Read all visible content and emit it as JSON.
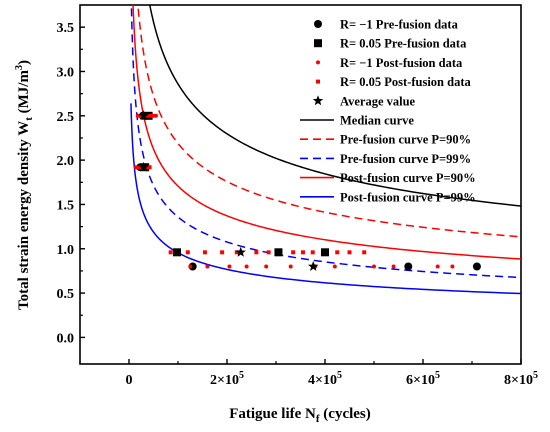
{
  "chart_data": {
    "type": "scatter",
    "xlabel_main": "Fatigue life N",
    "xlabel_sub": "f",
    "xlabel_tail": " (cycles)",
    "ylabel_main": "Total strain energy density  W",
    "ylabel_sub": "t",
    "ylabel_tail": " (MJ/m",
    "ylabel_sup": "3",
    "ylabel_close": ")",
    "xlim": [
      -100000,
      800000
    ],
    "ylim": [
      -0.3,
      3.75
    ],
    "x_ticks": [
      {
        "v": 0,
        "label": "0"
      },
      {
        "v": 200000,
        "label": "2×10",
        "sup": "5"
      },
      {
        "v": 400000,
        "label": "4×10",
        "sup": "5"
      },
      {
        "v": 600000,
        "label": "6×10",
        "sup": "5"
      },
      {
        "v": 800000,
        "label": "8×10",
        "sup": "5"
      }
    ],
    "y_ticks": [
      {
        "v": 0.0,
        "label": "0.0"
      },
      {
        "v": 0.5,
        "label": "0.5"
      },
      {
        "v": 1.0,
        "label": "1.0"
      },
      {
        "v": 1.5,
        "label": "1.5"
      },
      {
        "v": 2.0,
        "label": "2.0"
      },
      {
        "v": 2.5,
        "label": "2.5"
      },
      {
        "v": 3.0,
        "label": "3.0"
      },
      {
        "v": 3.5,
        "label": "3.5"
      }
    ],
    "legend_placement": "top-right",
    "series": [
      {
        "name": "R= −1    Pre-fusion data",
        "kind": "points",
        "marker": "circle",
        "size": 8,
        "color": "#000000",
        "points": [
          [
            28000,
            2.5
          ],
          [
            23000,
            1.92
          ],
          [
            130000,
            0.8
          ],
          [
            570000,
            0.8
          ],
          [
            710000,
            0.8
          ]
        ]
      },
      {
        "name": "R= 0.05  Pre-fusion data",
        "kind": "points",
        "marker": "square",
        "size": 8,
        "color": "#000000",
        "points": [
          [
            40000,
            2.5
          ],
          [
            33000,
            1.92
          ],
          [
            98000,
            0.96
          ],
          [
            305000,
            0.96
          ],
          [
            400000,
            0.96
          ]
        ]
      },
      {
        "name": "R= −1    Post-fusion data",
        "kind": "points",
        "marker": "circle",
        "size": 4,
        "color": "#ff0000",
        "points": [
          [
            18000,
            2.5
          ],
          [
            42000,
            2.5
          ],
          [
            55000,
            2.5
          ],
          [
            20000,
            1.92
          ],
          [
            30000,
            1.92
          ],
          [
            38000,
            1.92
          ],
          [
            14000,
            1.92
          ],
          [
            125000,
            0.8
          ],
          [
            160000,
            0.8
          ],
          [
            205000,
            0.8
          ],
          [
            240000,
            0.8
          ],
          [
            280000,
            0.8
          ],
          [
            330000,
            0.8
          ],
          [
            380000,
            0.8
          ],
          [
            420000,
            0.8
          ],
          [
            500000,
            0.8
          ],
          [
            540000,
            0.8
          ],
          [
            630000,
            0.8
          ],
          [
            660000,
            0.8
          ]
        ]
      },
      {
        "name": "R= 0.05  Post-fusion data",
        "kind": "points",
        "marker": "square",
        "size": 4,
        "color": "#ff0000",
        "points": [
          [
            25000,
            2.5
          ],
          [
            35000,
            2.5
          ],
          [
            48000,
            2.5
          ],
          [
            25000,
            1.92
          ],
          [
            42000,
            1.92
          ],
          [
            85000,
            0.96
          ],
          [
            120000,
            0.96
          ],
          [
            155000,
            0.96
          ],
          [
            190000,
            0.96
          ],
          [
            220000,
            0.96
          ],
          [
            260000,
            0.96
          ],
          [
            285000,
            0.96
          ],
          [
            335000,
            0.96
          ],
          [
            355000,
            0.96
          ],
          [
            375000,
            0.96
          ],
          [
            425000,
            0.96
          ],
          [
            450000,
            0.96
          ],
          [
            480000,
            0.96
          ]
        ]
      },
      {
        "name": "Average value",
        "kind": "points",
        "marker": "star",
        "size": 9,
        "color": "#000000",
        "points": [
          [
            30000,
            2.5
          ],
          [
            30000,
            1.92
          ],
          [
            228000,
            0.96
          ],
          [
            376000,
            0.8
          ]
        ]
      },
      {
        "name": "Median curve",
        "kind": "curve",
        "color": "#000000",
        "dash": false,
        "a": 108.7,
        "b": -0.316
      },
      {
        "name": "Pre-fusion curve P=90%",
        "kind": "curve",
        "color": "#ff0000",
        "dash": true,
        "a": 83.2,
        "b": -0.316
      },
      {
        "name": "Pre-fusion curve P=99%",
        "kind": "curve",
        "color": "#0000ff",
        "dash": true,
        "a": 65.0,
        "b": -0.336
      },
      {
        "name": "Post-fusion curve P=90%",
        "kind": "curve",
        "color": "#ff0000",
        "dash": false,
        "a": 64.9,
        "b": -0.316
      },
      {
        "name": "Post-fusion curve P=99%",
        "kind": "curve",
        "color": "#0000ff",
        "dash": false,
        "a": 36.3,
        "b": -0.316
      }
    ]
  }
}
